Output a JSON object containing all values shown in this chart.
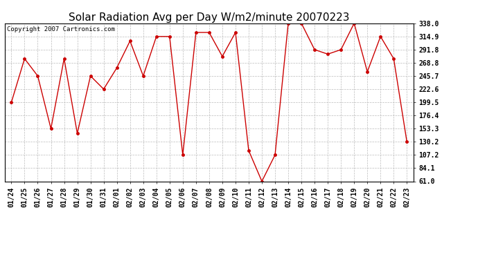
{
  "title": "Solar Radiation Avg per Day W/m2/minute 20070223",
  "copyright": "Copyright 2007 Cartronics.com",
  "labels": [
    "01/24",
    "01/25",
    "01/26",
    "01/27",
    "01/28",
    "01/29",
    "01/30",
    "01/31",
    "02/01",
    "02/02",
    "02/03",
    "02/04",
    "02/05",
    "02/06",
    "02/07",
    "02/08",
    "02/09",
    "02/10",
    "02/11",
    "02/12",
    "02/13",
    "02/14",
    "02/15",
    "02/16",
    "02/17",
    "02/18",
    "02/19",
    "02/20",
    "02/21",
    "02/22",
    "02/23"
  ],
  "values": [
    199.5,
    276.0,
    245.7,
    153.3,
    276.0,
    145.0,
    245.7,
    222.6,
    260.0,
    307.0,
    245.7,
    314.9,
    314.9,
    107.2,
    322.0,
    322.0,
    280.0,
    322.0,
    115.0,
    61.0,
    107.2,
    338.0,
    338.0,
    291.8,
    284.0,
    291.8,
    338.0,
    253.0,
    314.9,
    276.0,
    130.2
  ],
  "line_color": "#cc0000",
  "marker": "o",
  "marker_size": 2.5,
  "background_color": "#ffffff",
  "grid_color": "#bbbbbb",
  "ytick_values": [
    61.0,
    84.1,
    107.2,
    130.2,
    153.3,
    176.4,
    199.5,
    222.6,
    245.7,
    268.8,
    291.8,
    314.9,
    338.0
  ],
  "ylim": [
    61.0,
    338.0
  ],
  "title_fontsize": 11,
  "tick_fontsize": 7,
  "copyright_fontsize": 6.5
}
